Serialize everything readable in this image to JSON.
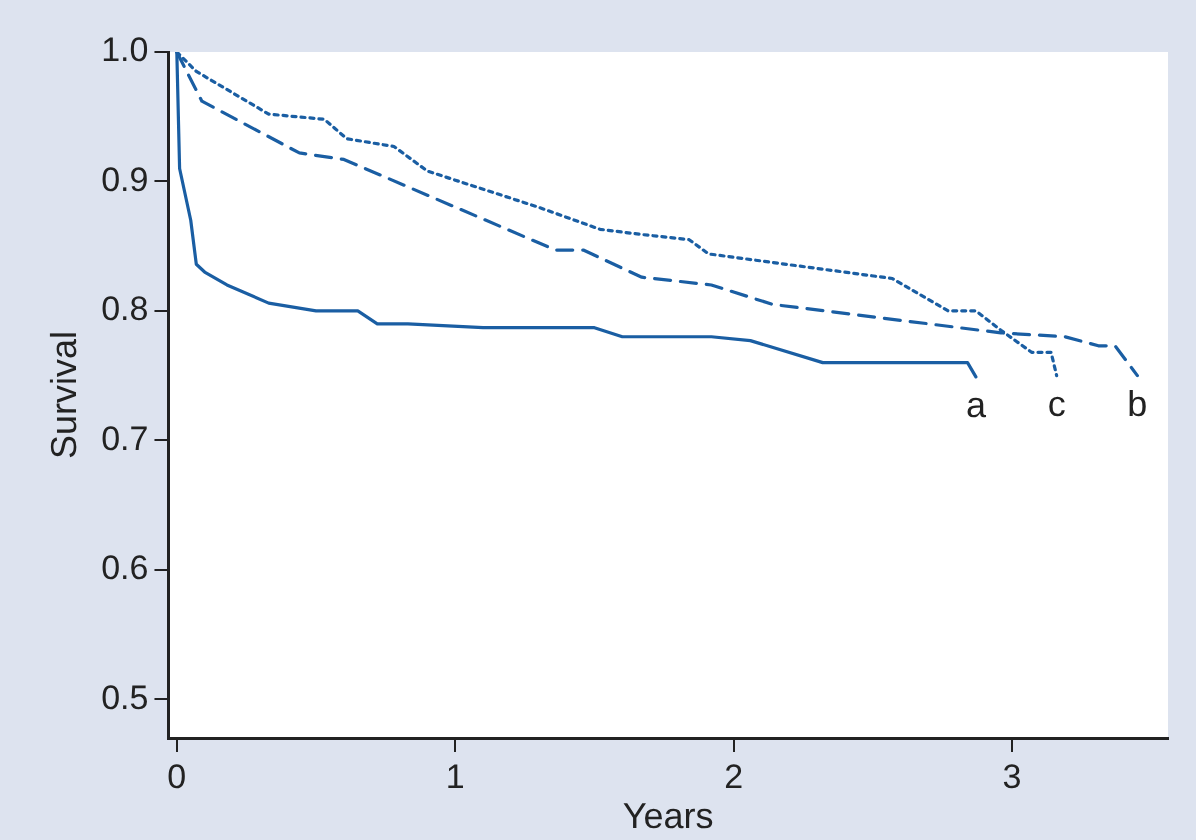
{
  "chart_data": {
    "type": "line",
    "xlabel": "Years",
    "ylabel": "Survival",
    "xlim": [
      -0.03,
      3.56
    ],
    "ylim": [
      0.47,
      1.0
    ],
    "xticks": [
      0,
      1,
      2,
      3
    ],
    "yticks": [
      0.5,
      0.6,
      0.7,
      0.8,
      0.9,
      {
        "value": 1,
        "label": "1.0"
      }
    ],
    "grid": false,
    "legend": false,
    "marker": "none",
    "series": [
      {
        "name": "a",
        "color": "#1a5ea3",
        "line_style": "solid",
        "x": [
          0,
          0.01,
          0.05,
          0.07,
          0.1,
          0.18,
          0.33,
          0.5,
          0.65,
          0.72,
          0.83,
          1.1,
          1.5,
          1.6,
          1.92,
          2.06,
          2.32,
          2.84,
          2.87
        ],
        "values": [
          1.0,
          0.91,
          0.87,
          0.836,
          0.83,
          0.82,
          0.806,
          0.8,
          0.8,
          0.79,
          0.79,
          0.787,
          0.787,
          0.78,
          0.78,
          0.777,
          0.76,
          0.76,
          0.749
        ]
      },
      {
        "name": "b",
        "color": "#1a5ea3",
        "line_style": "dashed",
        "x": [
          0,
          0.09,
          0.44,
          0.6,
          1.36,
          1.46,
          1.67,
          1.92,
          2.14,
          2.96,
          3.19,
          3.31,
          3.37,
          3.45
        ],
        "values": [
          1.0,
          0.962,
          0.922,
          0.917,
          0.847,
          0.847,
          0.826,
          0.82,
          0.805,
          0.783,
          0.78,
          0.773,
          0.773,
          0.75
        ]
      },
      {
        "name": "c",
        "color": "#1a5ea3",
        "line_style": "dotted",
        "x": [
          0,
          0.07,
          0.33,
          0.53,
          0.61,
          0.78,
          0.9,
          1.3,
          1.52,
          1.67,
          1.84,
          1.91,
          2.57,
          2.77,
          2.87,
          2.96,
          3.07,
          3.14,
          3.16
        ],
        "values": [
          1.0,
          0.985,
          0.952,
          0.948,
          0.933,
          0.927,
          0.908,
          0.88,
          0.863,
          0.859,
          0.855,
          0.844,
          0.825,
          0.8,
          0.8,
          0.785,
          0.768,
          0.768,
          0.75
        ]
      }
    ]
  }
}
